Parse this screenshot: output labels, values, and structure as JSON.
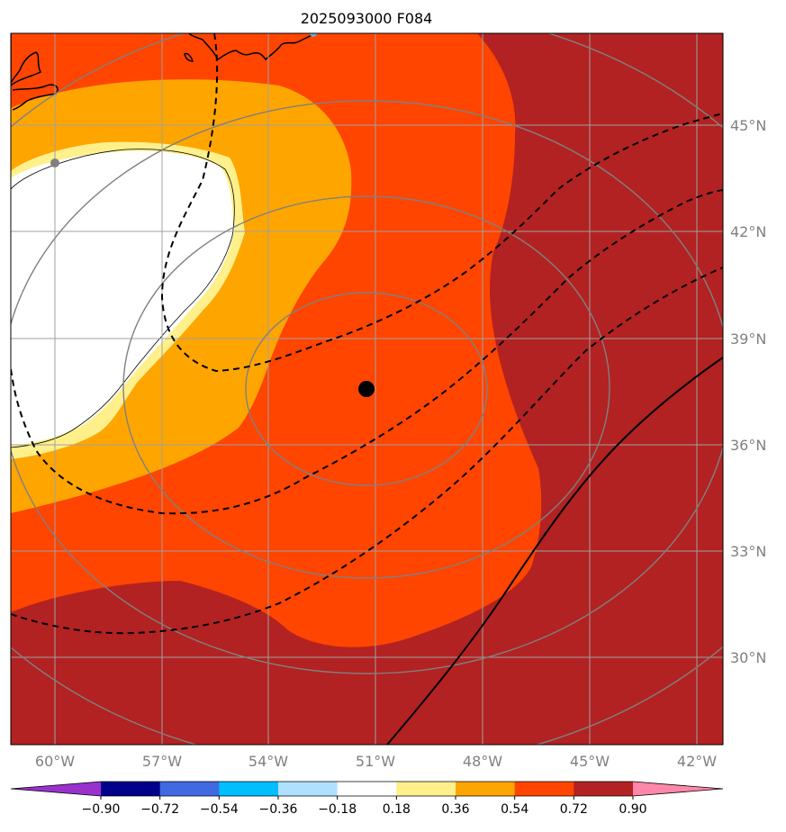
{
  "title": "2025093000 F084",
  "lon_labels": [
    "60°W",
    "57°W",
    "54°W",
    "51°W",
    "48°W",
    "45°W",
    "42°W"
  ],
  "lat_labels": [
    "45°N",
    "42°N",
    "39°N",
    "36°N",
    "33°N",
    "30°N"
  ],
  "colorbar": {
    "ticks": [
      "−0.90",
      "−0.72",
      "−0.54",
      "−0.36",
      "−0.18",
      "0.18",
      "0.36",
      "0.54",
      "0.72",
      "0.90"
    ],
    "colors": [
      "#9932cc",
      "#00008b",
      "#4169e1",
      "#00bfff",
      "#b0e0ff",
      "#ffffff",
      "#fff08c",
      "#ffa500",
      "#ff4500",
      "#b22222",
      "#ff88aa"
    ]
  },
  "map": {
    "center_marker": {
      "lon": -51.2,
      "lat": 37.6,
      "color": "#000000"
    },
    "colors": {
      "dark_red": "#b22222",
      "red_orange": "#ff4500",
      "orange": "#ffa500",
      "light_yellow": "#fff08c",
      "white": "#ffffff",
      "grid": "#a0a0a0",
      "range_rings": "#808080"
    }
  }
}
